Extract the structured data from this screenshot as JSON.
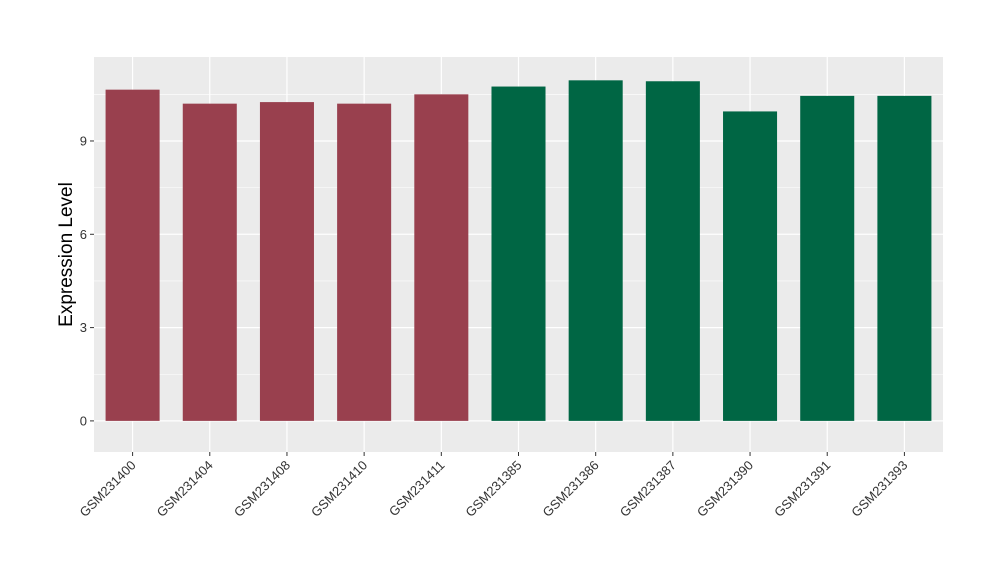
{
  "chart_data": {
    "type": "bar",
    "title": "",
    "xlabel": "",
    "ylabel": "Expression Level",
    "ylim": [
      -1.0,
      11.7
    ],
    "y_ticks": [
      0,
      3,
      6,
      9
    ],
    "y_tick_labels": [
      "0",
      "3",
      "6",
      "9"
    ],
    "grid": true,
    "legend": "none",
    "categories": [
      "GSM231400",
      "GSM231404",
      "GSM231408",
      "GSM231410",
      "GSM231411",
      "GSM231385",
      "GSM231386",
      "GSM231387",
      "GSM231390",
      "GSM231391",
      "GSM231393"
    ],
    "values": [
      10.65,
      10.2,
      10.25,
      10.2,
      10.5,
      10.75,
      10.95,
      10.92,
      9.95,
      10.45,
      10.45
    ],
    "bar_colors": [
      "#99404e",
      "#99404e",
      "#99404e",
      "#99404e",
      "#99404e",
      "#006644",
      "#006644",
      "#006644",
      "#006644",
      "#006644",
      "#006644"
    ],
    "panel_background": "#ebebeb",
    "grid_color": "#ffffff"
  }
}
